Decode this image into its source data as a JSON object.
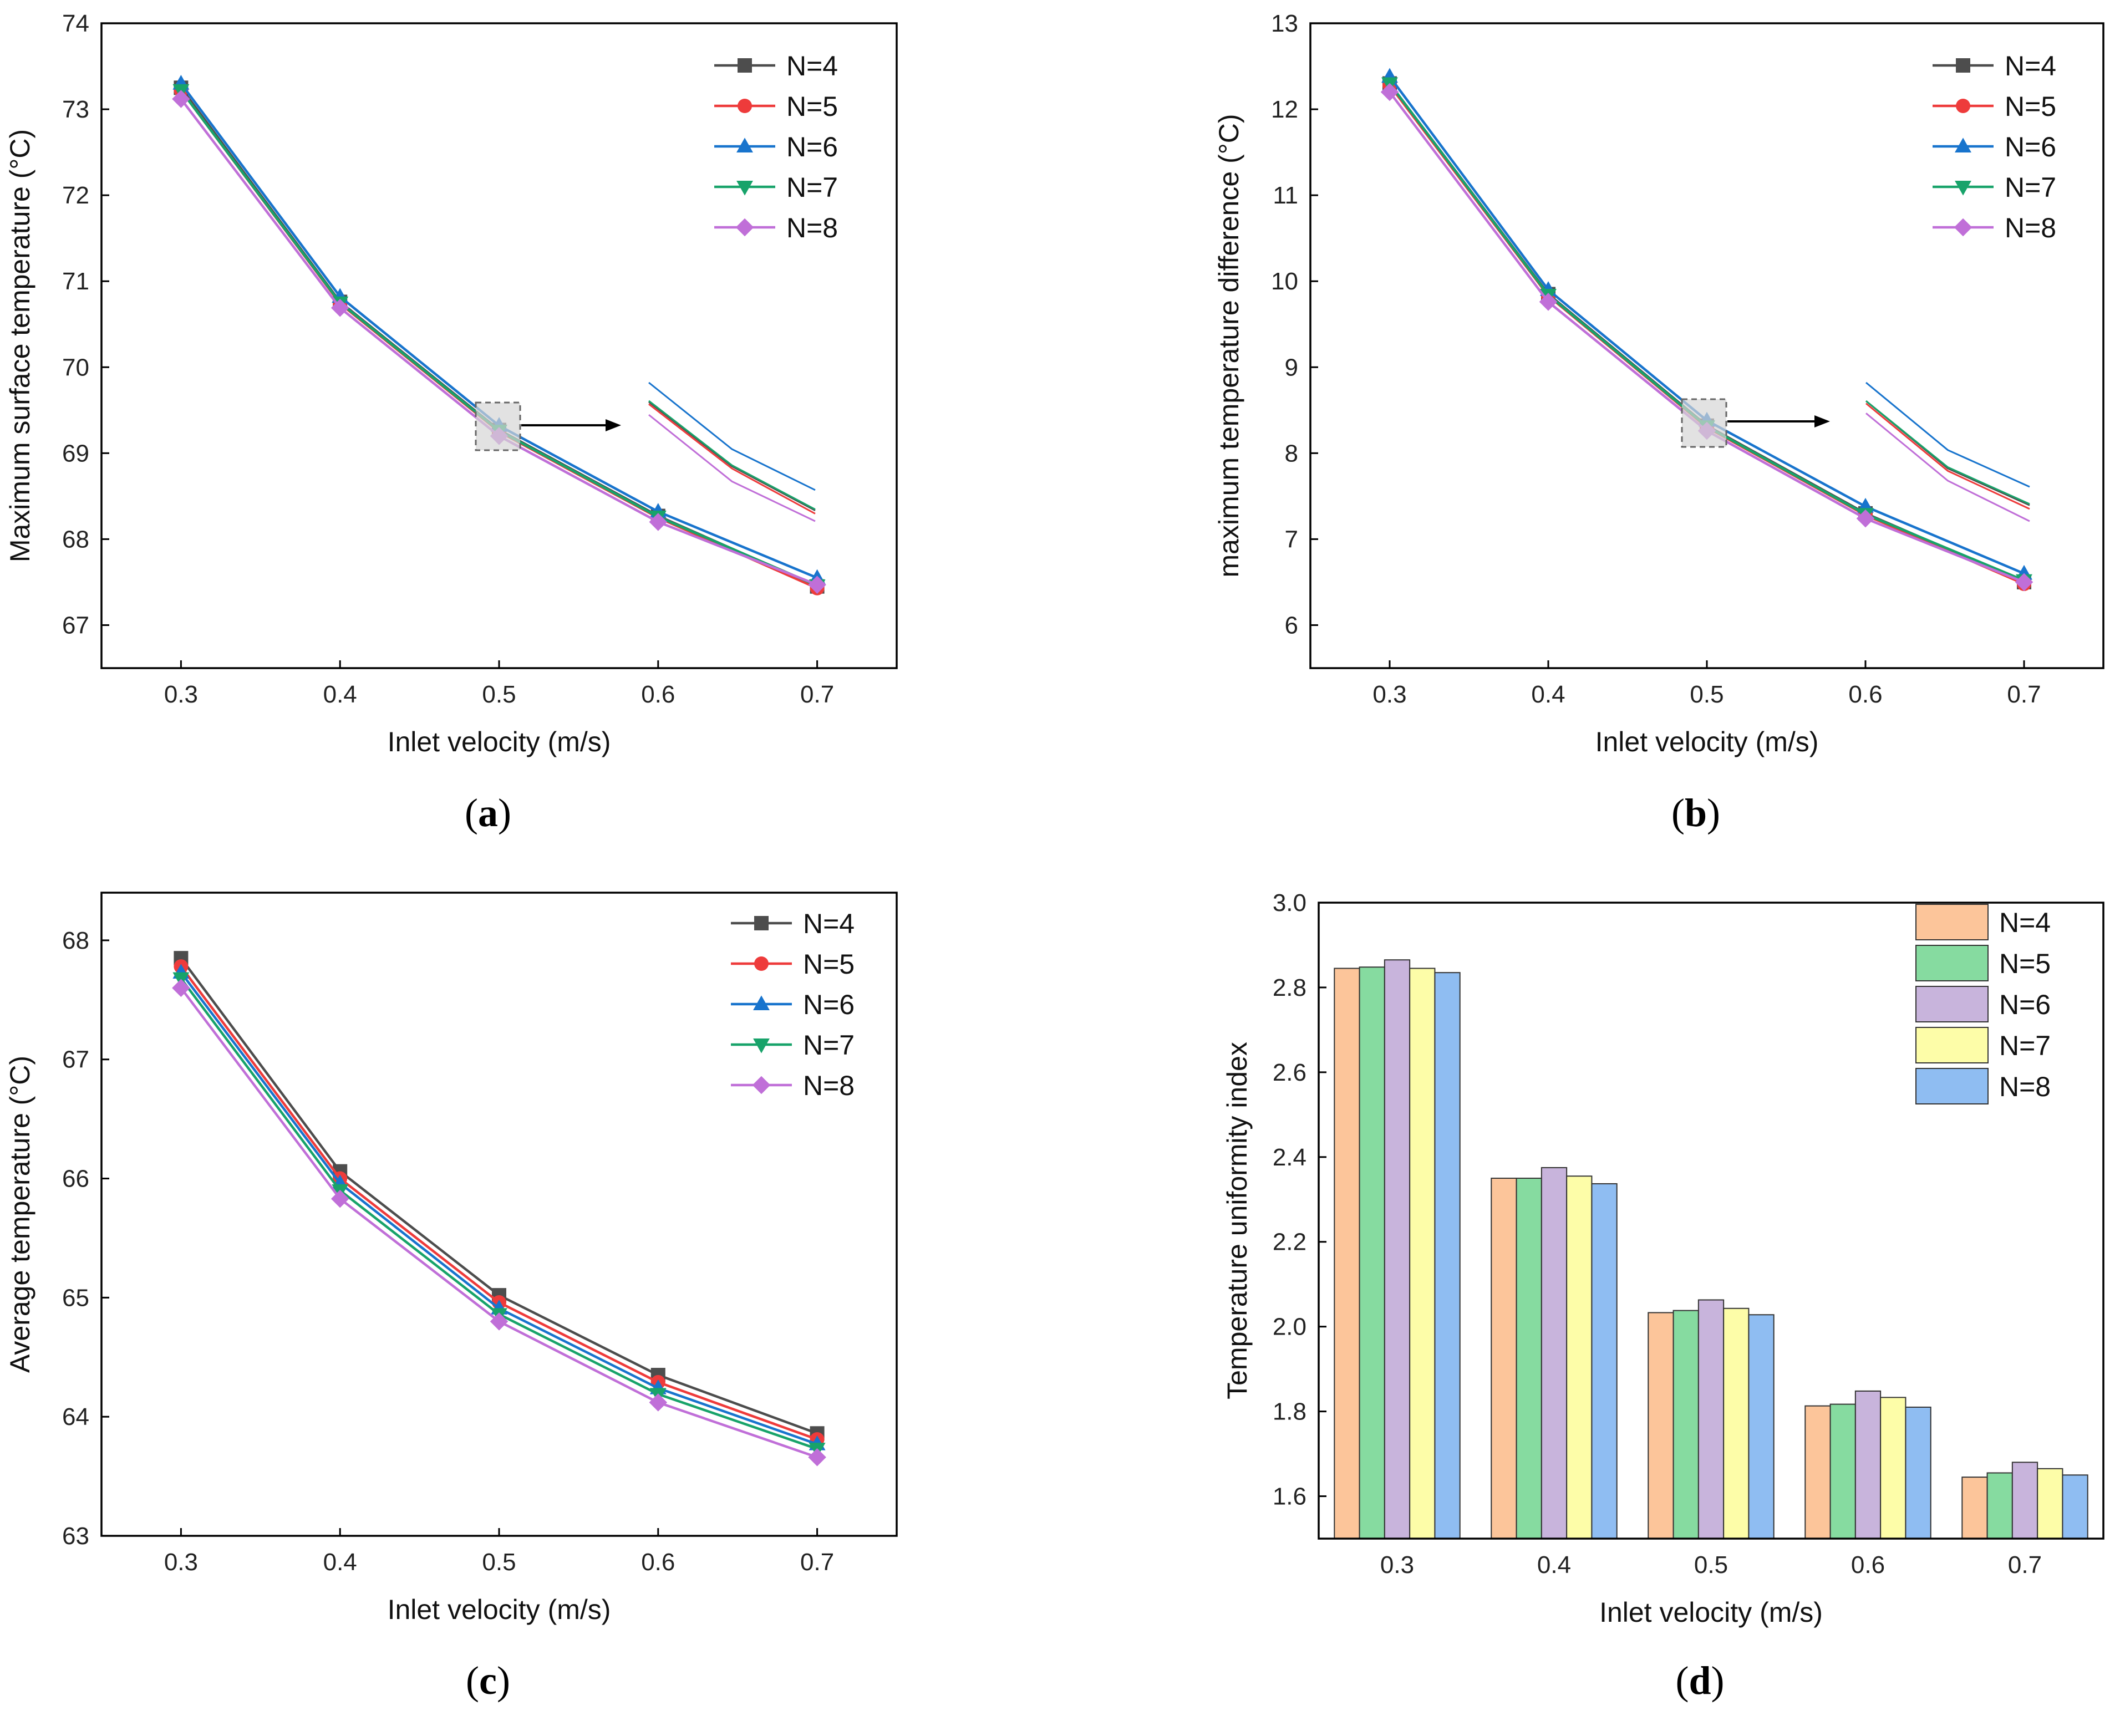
{
  "series_styles": [
    {
      "name": "N=4",
      "color": "#4d4d4d",
      "marker": "square"
    },
    {
      "name": "N=5",
      "color": "#ee3b3b",
      "marker": "circle"
    },
    {
      "name": "N=6",
      "color": "#1874cd",
      "marker": "triangle-up"
    },
    {
      "name": "N=7",
      "color": "#18a36a",
      "marker": "triangle-down"
    },
    {
      "name": "N=8",
      "color": "#c06fd8",
      "marker": "diamond"
    }
  ],
  "bar_colors": [
    "#fcc59a",
    "#86dba0",
    "#c8b4dc",
    "#fdfda8",
    "#8fbdf2"
  ],
  "chart_data": [
    {
      "id": "a",
      "type": "line",
      "panel_label": "a",
      "xlabel": "Inlet velocity (m/s)",
      "ylabel": "Maximum surface temperature (°C)",
      "x": [
        0.3,
        0.4,
        0.5,
        0.6,
        0.7
      ],
      "x_ticks": [
        "0.3",
        "0.4",
        "0.5",
        "0.6",
        "0.7"
      ],
      "xlim": [
        0.25,
        0.75
      ],
      "ylim": [
        66.5,
        74
      ],
      "y_ticks": [
        "67",
        "68",
        "69",
        "70",
        "71",
        "72",
        "73",
        "74"
      ],
      "legend_position": "top-right",
      "inset": "zoomed view of the curves near 0.5 m/s, shown to the right of the highlighted box",
      "series": [
        {
          "name": "N=4",
          "values": [
            73.25,
            70.76,
            69.27,
            68.27,
            67.45
          ]
        },
        {
          "name": "N=5",
          "values": [
            73.22,
            70.74,
            69.25,
            68.25,
            67.43
          ]
        },
        {
          "name": "N=6",
          "values": [
            73.3,
            70.82,
            69.32,
            68.32,
            67.55
          ]
        },
        {
          "name": "N=7",
          "values": [
            73.22,
            70.75,
            69.26,
            68.26,
            67.46
          ]
        },
        {
          "name": "N=8",
          "values": [
            73.12,
            70.69,
            69.2,
            68.2,
            67.47
          ]
        }
      ],
      "inset_series": [
        {
          "name": "N=4",
          "values": [
            69.44,
            68.84,
            68.43
          ]
        },
        {
          "name": "N=5",
          "values": [
            69.42,
            68.82,
            68.4
          ]
        },
        {
          "name": "N=6",
          "values": [
            69.62,
            69.0,
            68.62
          ]
        },
        {
          "name": "N=7",
          "values": [
            69.45,
            68.85,
            68.44
          ]
        },
        {
          "name": "N=8",
          "values": [
            69.32,
            68.7,
            68.33
          ]
        }
      ]
    },
    {
      "id": "b",
      "type": "line",
      "panel_label": "b",
      "xlabel": "Inlet velocity (m/s)",
      "ylabel": "maximum temperature difference (°C)",
      "x": [
        0.3,
        0.4,
        0.5,
        0.6,
        0.7
      ],
      "x_ticks": [
        "0.3",
        "0.4",
        "0.5",
        "0.6",
        "0.7"
      ],
      "xlim": [
        0.25,
        0.75
      ],
      "ylim": [
        5.5,
        13
      ],
      "y_ticks": [
        "6",
        "7",
        "8",
        "9",
        "10",
        "11",
        "12",
        "13"
      ],
      "legend_position": "top-right",
      "inset": "zoomed view of the curves near 0.5 m/s, shown to the right of the highlighted box",
      "series": [
        {
          "name": "N=4",
          "values": [
            12.3,
            9.85,
            8.32,
            7.3,
            6.5
          ]
        },
        {
          "name": "N=5",
          "values": [
            12.28,
            9.83,
            8.3,
            7.28,
            6.48
          ]
        },
        {
          "name": "N=6",
          "values": [
            12.38,
            9.9,
            8.38,
            7.38,
            6.6
          ]
        },
        {
          "name": "N=7",
          "values": [
            12.3,
            9.84,
            8.31,
            7.29,
            6.52
          ]
        },
        {
          "name": "N=8",
          "values": [
            12.2,
            9.76,
            8.26,
            7.24,
            6.5
          ]
        }
      ],
      "inset_series": [
        {
          "name": "N=4",
          "values": [
            8.5,
            7.95,
            7.65
          ]
        },
        {
          "name": "N=5",
          "values": [
            8.48,
            7.93,
            7.62
          ]
        },
        {
          "name": "N=6",
          "values": [
            8.65,
            8.1,
            7.8
          ]
        },
        {
          "name": "N=7",
          "values": [
            8.5,
            7.96,
            7.66
          ]
        },
        {
          "name": "N=8",
          "values": [
            8.4,
            7.85,
            7.52
          ]
        }
      ]
    },
    {
      "id": "c",
      "type": "line",
      "panel_label": "c",
      "xlabel": "Inlet velocity (m/s)",
      "ylabel": "Average temperature (°C)",
      "x": [
        0.3,
        0.4,
        0.5,
        0.6,
        0.7
      ],
      "x_ticks": [
        "0.3",
        "0.4",
        "0.5",
        "0.6",
        "0.7"
      ],
      "xlim": [
        0.25,
        0.75
      ],
      "ylim": [
        63,
        68.4
      ],
      "y_ticks": [
        "63",
        "64",
        "65",
        "66",
        "67",
        "68"
      ],
      "legend_position": "top-right",
      "series": [
        {
          "name": "N=4",
          "values": [
            67.85,
            66.06,
            65.02,
            64.35,
            63.86
          ]
        },
        {
          "name": "N=5",
          "values": [
            67.78,
            66.0,
            64.96,
            64.29,
            63.81
          ]
        },
        {
          "name": "N=6",
          "values": [
            67.73,
            65.96,
            64.91,
            64.24,
            63.77
          ]
        },
        {
          "name": "N=7",
          "values": [
            67.68,
            65.9,
            64.86,
            64.19,
            63.73
          ]
        },
        {
          "name": "N=8",
          "values": [
            67.6,
            65.83,
            64.8,
            64.12,
            63.66
          ]
        }
      ]
    },
    {
      "id": "d",
      "type": "bar",
      "panel_label": "d",
      "xlabel": "Inlet velocity (m/s)",
      "ylabel": "Temperature uniformity index",
      "categories": [
        "0.3",
        "0.4",
        "0.5",
        "0.6",
        "0.7"
      ],
      "ylim": [
        1.5,
        3.0
      ],
      "y_ticks": [
        "1.6",
        "1.8",
        "2.0",
        "2.2",
        "2.4",
        "2.6",
        "2.8",
        "3.0"
      ],
      "legend_position": "top-right",
      "series": [
        {
          "name": "N=4",
          "values": [
            2.845,
            2.35,
            2.033,
            1.813,
            1.645
          ]
        },
        {
          "name": "N=5",
          "values": [
            2.848,
            2.35,
            2.038,
            1.817,
            1.655
          ]
        },
        {
          "name": "N=6",
          "values": [
            2.865,
            2.375,
            2.063,
            1.848,
            1.68
          ]
        },
        {
          "name": "N=7",
          "values": [
            2.845,
            2.355,
            2.043,
            1.833,
            1.665
          ]
        },
        {
          "name": "N=8",
          "values": [
            2.835,
            2.337,
            2.028,
            1.81,
            1.65
          ]
        }
      ]
    }
  ]
}
